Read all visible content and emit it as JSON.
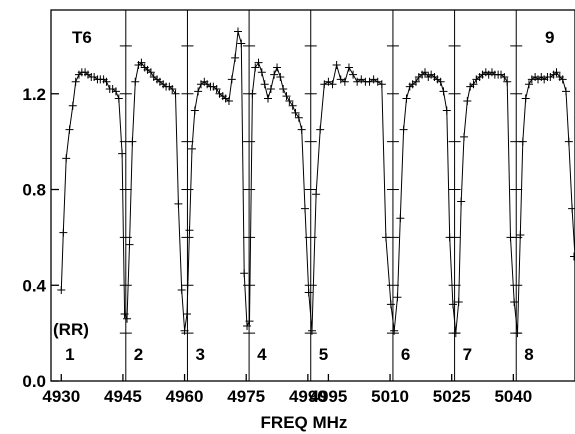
{
  "chart_data": {
    "type": "line",
    "title": "",
    "corner_labels": {
      "left": "T6",
      "right": "9"
    },
    "polarization_label": "(RR)",
    "xlabel": "FREQ MHz",
    "ylabel": "",
    "ylim": [
      0.0,
      1.55
    ],
    "y_ticks": [
      0.0,
      0.4,
      0.8,
      1.2
    ],
    "y_tick_labels": [
      "0.0",
      "0.4",
      "0.8",
      "1.2"
    ],
    "x_ticks": [
      4930,
      4945,
      4960,
      4975,
      4990,
      4995,
      5010,
      5025,
      5040
    ],
    "x_tick_labels": [
      "4930",
      "4945",
      "4960",
      "4975",
      "4990",
      "4995",
      "5010",
      "5025",
      "5040"
    ],
    "panel_boundaries_mhz": [
      4945.7,
      4960.7,
      4975.7,
      4990.7,
      5010.7,
      5025.7,
      5040.7
    ],
    "panel_labels": [
      "1",
      "2",
      "3",
      "4",
      "5",
      "6",
      "7",
      "8"
    ],
    "series": [
      {
        "x": [
          4930.0,
          4930.5,
          4931.2,
          4932.0,
          4932.8,
          4933.5,
          4934.3,
          4935.0,
          4935.8,
          4936.5,
          4937.3,
          4938.0,
          4938.8,
          4939.5,
          4940.3,
          4941.0,
          4941.8,
          4942.5,
          4943.3,
          4944.0,
          4944.8,
          4945.4,
          4946.0,
          4946.6,
          4947.3,
          4948.0,
          4948.8,
          4949.5,
          4950.3,
          4951.0,
          4951.8,
          4952.5,
          4953.3,
          4954.0,
          4954.8,
          4955.5,
          4956.3,
          4957.0,
          4957.8,
          4958.5,
          4959.3,
          4960.0,
          4960.6,
          4961.2,
          4961.8,
          4962.5,
          4963.3,
          4964.0,
          4964.8,
          4965.5,
          4966.3,
          4967.0,
          4967.8,
          4968.5,
          4969.3,
          4970.0,
          4970.8,
          4971.5,
          4972.3,
          4973.0,
          4973.8,
          4974.5,
          4975.2,
          4975.8,
          4976.5,
          4977.2,
          4978.0,
          4978.8,
          4979.5,
          4980.3,
          4981.0,
          4981.8,
          4982.5,
          4983.3,
          4984.0,
          4984.8,
          4985.5,
          4986.3,
          4987.0,
          4987.8,
          4988.5,
          4989.3,
          4990.2,
          4991.0,
          4992.0,
          4993.0,
          4994.0,
          4995.0,
          4996.0,
          4997.0,
          4998.0,
          4999.0,
          5000.0,
          5001.0,
          5002.0,
          5003.0,
          5004.0,
          5005.0,
          5006.0,
          5007.0,
          5008.0,
          5009.0,
          5010.2,
          5011.0,
          5011.8,
          5012.5,
          5013.3,
          5014.0,
          5014.8,
          5015.5,
          5016.3,
          5017.0,
          5017.8,
          5018.5,
          5019.3,
          5020.0,
          5020.8,
          5021.5,
          5022.3,
          5023.0,
          5023.8,
          5024.5,
          5025.3,
          5026.0,
          5026.7,
          5027.3,
          5028.0,
          5028.8,
          5029.5,
          5030.3,
          5031.0,
          5031.8,
          5032.5,
          5033.3,
          5034.0,
          5034.8,
          5035.5,
          5036.3,
          5037.0,
          5037.8,
          5038.5,
          5039.3,
          5040.2,
          5041.0,
          5041.7,
          5042.3,
          5043.0,
          5043.8,
          5044.5,
          5045.3,
          5046.0,
          5046.8,
          5047.5,
          5048.3,
          5049.0,
          5049.8,
          5050.5,
          5051.3,
          5052.0,
          5052.8,
          5053.5,
          5054.3,
          5055.0
        ],
        "y": [
          0.38,
          0.62,
          0.93,
          1.05,
          1.15,
          1.25,
          1.28,
          1.29,
          1.29,
          1.28,
          1.27,
          1.27,
          1.26,
          1.26,
          1.26,
          1.25,
          1.22,
          1.22,
          1.21,
          1.18,
          0.95,
          0.28,
          0.26,
          0.57,
          1.0,
          1.25,
          1.32,
          1.33,
          1.31,
          1.3,
          1.29,
          1.27,
          1.26,
          1.25,
          1.24,
          1.23,
          1.23,
          1.22,
          1.2,
          0.74,
          0.38,
          0.21,
          0.28,
          0.63,
          0.97,
          1.13,
          1.21,
          1.24,
          1.25,
          1.24,
          1.23,
          1.23,
          1.22,
          1.2,
          1.19,
          1.18,
          1.17,
          1.26,
          1.35,
          1.46,
          1.41,
          0.45,
          0.23,
          0.25,
          1.2,
          1.31,
          1.33,
          1.29,
          1.24,
          1.18,
          1.22,
          1.28,
          1.31,
          1.27,
          1.22,
          1.19,
          1.17,
          1.15,
          1.12,
          1.1,
          1.05,
          0.72,
          0.37,
          0.21,
          0.78,
          1.05,
          1.24,
          1.25,
          1.24,
          1.32,
          1.26,
          1.25,
          1.31,
          1.28,
          1.25,
          1.26,
          1.25,
          1.25,
          1.26,
          1.25,
          1.24,
          0.6,
          0.32,
          0.21,
          0.35,
          0.68,
          1.05,
          1.18,
          1.23,
          1.24,
          1.25,
          1.27,
          1.28,
          1.29,
          1.27,
          1.28,
          1.27,
          1.26,
          1.25,
          1.21,
          1.13,
          0.6,
          0.32,
          0.2,
          0.33,
          0.75,
          1.02,
          1.17,
          1.23,
          1.24,
          1.26,
          1.27,
          1.28,
          1.29,
          1.28,
          1.29,
          1.28,
          1.28,
          1.28,
          1.27,
          1.25,
          0.6,
          0.33,
          0.2,
          0.61,
          1.0,
          1.18,
          1.24,
          1.26,
          1.27,
          1.26,
          1.27,
          1.26,
          1.27,
          1.27,
          1.28,
          1.29,
          1.27,
          1.26,
          1.21,
          1.0,
          0.72,
          0.52
        ]
      }
    ],
    "grid": false,
    "legend": "none"
  }
}
